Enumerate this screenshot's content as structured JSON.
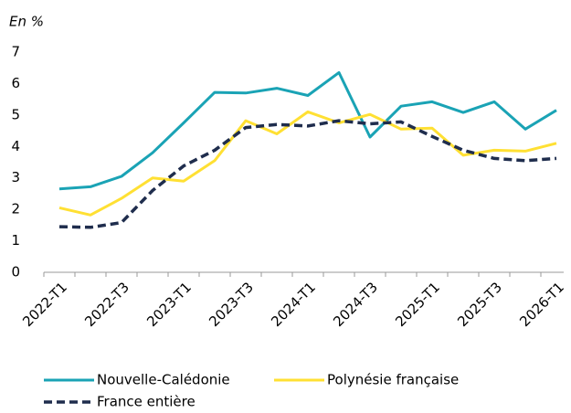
{
  "chart_data": {
    "type": "line",
    "title": "En %",
    "categories": [
      "2022-T1",
      null,
      "2022-T3",
      null,
      "2023-T1",
      null,
      "2023-T3",
      null,
      "2024-T1",
      null,
      "2024-T3",
      null,
      "2025-T1",
      null,
      "2025-T3",
      null,
      "2026-T1"
    ],
    "series": [
      {
        "name": "Nouvelle-Calédonie",
        "color": "#1aa3b5",
        "dashed": false,
        "values": [
          2.65,
          2.72,
          3.05,
          3.8,
          4.75,
          5.72,
          5.7,
          5.85,
          5.62,
          6.35,
          4.3,
          5.28,
          5.42,
          5.08,
          5.42,
          4.55,
          5.15
        ]
      },
      {
        "name": "Polynésie française",
        "color": "#ffe033",
        "dashed": false,
        "values": [
          2.05,
          1.82,
          2.35,
          3.0,
          2.9,
          3.55,
          4.82,
          4.4,
          5.1,
          4.75,
          5.02,
          4.55,
          4.58,
          3.72,
          3.88,
          3.85,
          4.1
        ]
      },
      {
        "name": "France entière",
        "color": "#1f2d4d",
        "dashed": true,
        "values": [
          1.45,
          1.43,
          1.58,
          2.6,
          3.38,
          3.88,
          4.6,
          4.7,
          4.65,
          4.82,
          4.72,
          4.78,
          4.32,
          3.88,
          3.62,
          3.55,
          3.62
        ]
      }
    ],
    "ylim": [
      0,
      7
    ],
    "yticks": [
      0,
      1,
      2,
      3,
      4,
      5,
      6,
      7
    ],
    "grid": false
  }
}
